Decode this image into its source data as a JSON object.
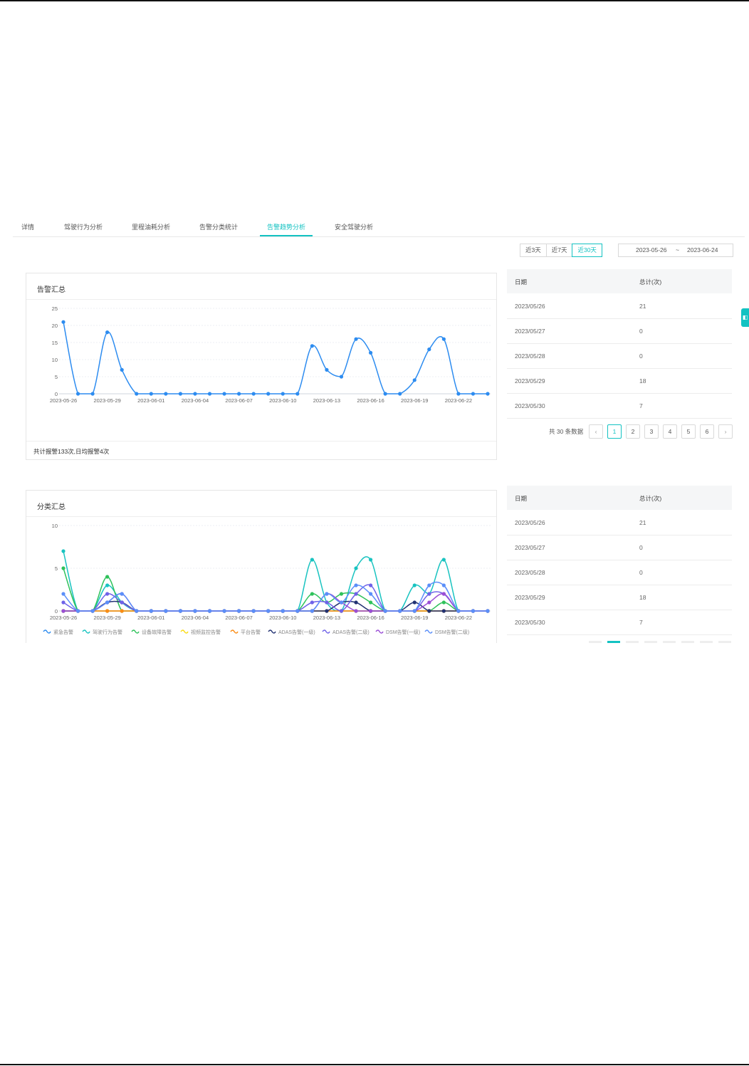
{
  "tabs": [
    {
      "label": "详情",
      "active": false
    },
    {
      "label": "驾驶行为分析",
      "active": false
    },
    {
      "label": "里程油耗分析",
      "active": false
    },
    {
      "label": "告警分类统计",
      "active": false
    },
    {
      "label": "告警趋势分析",
      "active": true
    },
    {
      "label": "安全驾驶分析",
      "active": false
    }
  ],
  "range_buttons": [
    {
      "label": "近3天",
      "active": false
    },
    {
      "label": "近7天",
      "active": false
    },
    {
      "label": "近30天",
      "active": true
    }
  ],
  "date_range": {
    "start": "2023-05-26",
    "separator": "~",
    "end": "2023-06-24"
  },
  "accent_color": "#13c2c2",
  "alarm_summary": {
    "title": "告警汇总",
    "footer": "共计报警133次,日均报警4次"
  },
  "category_summary": {
    "title": "分类汇总"
  },
  "table_top": {
    "headers": {
      "date": "日期",
      "total": "总计(次)"
    },
    "rows": [
      {
        "date": "2023/05/26",
        "total": "21"
      },
      {
        "date": "2023/05/27",
        "total": "0"
      },
      {
        "date": "2023/05/28",
        "total": "0"
      },
      {
        "date": "2023/05/29",
        "total": "18"
      },
      {
        "date": "2023/05/30",
        "total": "7"
      }
    ]
  },
  "pagination": {
    "total_text": "共 30 条数据",
    "prev_icon": "chevron-left-icon",
    "next_icon": "chevron-right-icon",
    "pages": [
      "1",
      "2",
      "3",
      "4",
      "5",
      "6"
    ],
    "current": "1"
  },
  "table_bottom": {
    "headers": {
      "date": "日期",
      "total": "总计(次)"
    },
    "rows": [
      {
        "date": "2023/05/26",
        "total": "21"
      },
      {
        "date": "2023/05/27",
        "total": "0"
      },
      {
        "date": "2023/05/28",
        "total": "0"
      },
      {
        "date": "2023/05/29",
        "total": "18"
      },
      {
        "date": "2023/05/30",
        "total": "7"
      }
    ]
  },
  "chart_data": [
    {
      "type": "line",
      "title": "告警汇总",
      "smooth": true,
      "x": [
        "2023-05-26",
        "2023-05-27",
        "2023-05-28",
        "2023-05-29",
        "2023-05-30",
        "2023-05-31",
        "2023-06-01",
        "2023-06-02",
        "2023-06-03",
        "2023-06-04",
        "2023-06-05",
        "2023-06-06",
        "2023-06-07",
        "2023-06-08",
        "2023-06-09",
        "2023-06-10",
        "2023-06-11",
        "2023-06-12",
        "2023-06-13",
        "2023-06-14",
        "2023-06-15",
        "2023-06-16",
        "2023-06-17",
        "2023-06-18",
        "2023-06-19",
        "2023-06-20",
        "2023-06-21",
        "2023-06-22",
        "2023-06-23",
        "2023-06-24"
      ],
      "x_tick_labels": [
        "2023-05-26",
        "2023-05-29",
        "2023-06-01",
        "2023-06-04",
        "2023-06-07",
        "2023-06-10",
        "2023-06-13",
        "2023-06-16",
        "2023-06-19",
        "2023-06-22"
      ],
      "ylim": [
        0,
        25
      ],
      "y_ticks": [
        0,
        5,
        10,
        15,
        20,
        25
      ],
      "grid": true,
      "series": [
        {
          "color": "#2d8cf0",
          "values": [
            21,
            0,
            0,
            18,
            7,
            0,
            0,
            0,
            0,
            0,
            0,
            0,
            0,
            0,
            0,
            0,
            0,
            14,
            7,
            5,
            16,
            12,
            0,
            0,
            4,
            13,
            16,
            0,
            0,
            0
          ]
        }
      ]
    },
    {
      "type": "line",
      "title": "分类汇总",
      "smooth": true,
      "x": [
        "2023-05-26",
        "2023-05-27",
        "2023-05-28",
        "2023-05-29",
        "2023-05-30",
        "2023-05-31",
        "2023-06-01",
        "2023-06-02",
        "2023-06-03",
        "2023-06-04",
        "2023-06-05",
        "2023-06-06",
        "2023-06-07",
        "2023-06-08",
        "2023-06-09",
        "2023-06-10",
        "2023-06-11",
        "2023-06-12",
        "2023-06-13",
        "2023-06-14",
        "2023-06-15",
        "2023-06-16",
        "2023-06-17",
        "2023-06-18",
        "2023-06-19",
        "2023-06-20",
        "2023-06-21",
        "2023-06-22",
        "2023-06-23",
        "2023-06-24"
      ],
      "x_tick_labels": [
        "2023-05-26",
        "2023-05-29",
        "2023-06-01",
        "2023-06-04",
        "2023-06-07",
        "2023-06-10",
        "2023-06-13",
        "2023-06-16",
        "2023-06-19",
        "2023-06-22"
      ],
      "ylim": [
        0,
        10
      ],
      "y_ticks": [
        0,
        5,
        10
      ],
      "grid": true,
      "legend_position": "bottom",
      "series": [
        {
          "name": "紧急告警",
          "color": "#2d8cf0",
          "values": [
            0,
            0,
            0,
            0,
            0,
            0,
            0,
            0,
            0,
            0,
            0,
            0,
            0,
            0,
            0,
            0,
            0,
            0,
            0,
            0,
            0,
            0,
            0,
            0,
            0,
            0,
            0,
            0,
            0,
            0
          ]
        },
        {
          "name": "驾驶行为告警",
          "color": "#19c3c0",
          "values": [
            7,
            0,
            0,
            3,
            1,
            0,
            0,
            0,
            0,
            0,
            0,
            0,
            0,
            0,
            0,
            0,
            0,
            6,
            1,
            0,
            5,
            6,
            0,
            0,
            3,
            2,
            6,
            0,
            0,
            0
          ]
        },
        {
          "name": "设备故障告警",
          "color": "#2fc25b",
          "values": [
            5,
            0,
            0,
            4,
            0,
            0,
            0,
            0,
            0,
            0,
            0,
            0,
            0,
            0,
            0,
            0,
            0,
            2,
            1,
            2,
            2,
            1,
            0,
            0,
            0,
            0,
            1,
            0,
            0,
            0
          ]
        },
        {
          "name": "视频监控告警",
          "color": "#fadb14",
          "values": [
            0,
            0,
            0,
            0,
            0,
            0,
            0,
            0,
            0,
            0,
            0,
            0,
            0,
            0,
            0,
            0,
            0,
            0,
            0,
            0,
            0,
            0,
            0,
            0,
            0,
            0,
            0,
            0,
            0,
            0
          ]
        },
        {
          "name": "平台告警",
          "color": "#fa8c16",
          "values": [
            0,
            0,
            0,
            0,
            0,
            0,
            0,
            0,
            0,
            0,
            0,
            0,
            0,
            0,
            0,
            0,
            0,
            0,
            0,
            0,
            0,
            0,
            0,
            0,
            0,
            0,
            0,
            0,
            0,
            0
          ]
        },
        {
          "name": "ADAS告警(一级)",
          "color": "#223273",
          "values": [
            0,
            0,
            0,
            1,
            1,
            0,
            0,
            0,
            0,
            0,
            0,
            0,
            0,
            0,
            0,
            0,
            0,
            0,
            0,
            1,
            1,
            0,
            0,
            0,
            1,
            0,
            0,
            0,
            0,
            0
          ]
        },
        {
          "name": "ADAS告警(二级)",
          "color": "#6f62e8",
          "values": [
            1,
            0,
            0,
            2,
            1,
            0,
            0,
            0,
            0,
            0,
            0,
            0,
            0,
            0,
            0,
            0,
            0,
            1,
            1,
            0,
            2,
            3,
            0,
            0,
            0,
            2,
            2,
            0,
            0,
            0
          ]
        },
        {
          "name": "DSM告警(一级)",
          "color": "#9b4fd6",
          "values": [
            0,
            0,
            0,
            1,
            2,
            0,
            0,
            0,
            0,
            0,
            0,
            0,
            0,
            0,
            0,
            0,
            0,
            0,
            2,
            1,
            0,
            0,
            0,
            0,
            0,
            1,
            2,
            0,
            0,
            0
          ]
        },
        {
          "name": "DSM告警(二级)",
          "color": "#5b8ff9",
          "values": [
            2,
            0,
            0,
            1,
            2,
            0,
            0,
            0,
            0,
            0,
            0,
            0,
            0,
            0,
            0,
            0,
            0,
            0,
            2,
            1,
            3,
            2,
            0,
            0,
            0,
            3,
            3,
            0,
            0,
            0
          ]
        }
      ]
    }
  ]
}
